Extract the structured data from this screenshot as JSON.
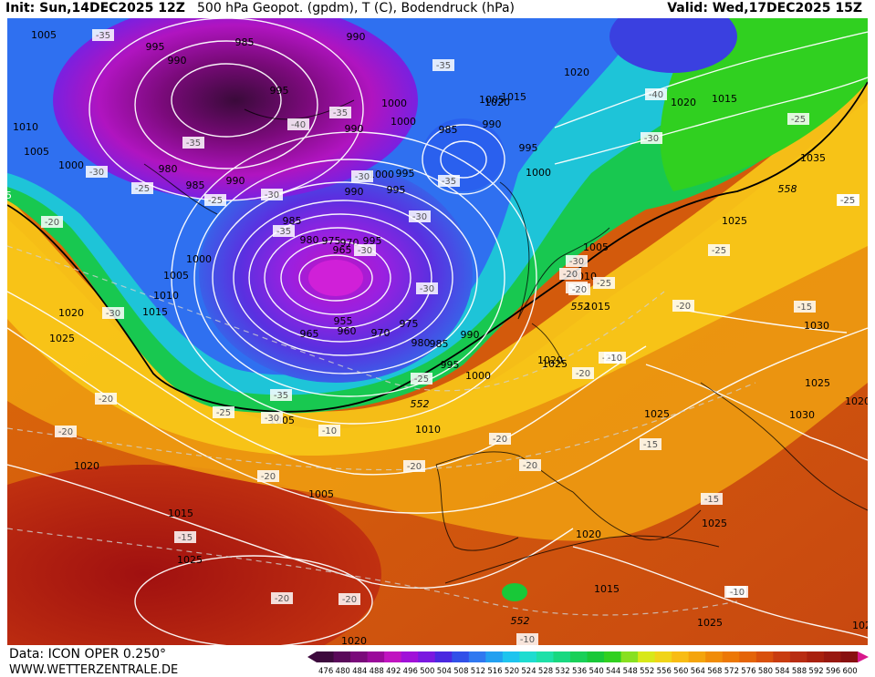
{
  "header": {
    "init": "Init: Sun,14DEC2025 12Z",
    "title": "500 hPa Geopot. (gpdm), T (C), Bodendruck (hPa)",
    "valid": "Valid: Wed,17DEC2025 15Z"
  },
  "footer": {
    "data_source": "Data: ICON OPER 0.250°",
    "url": "WWW.WETTERZENTRALE.DE"
  },
  "legend": {
    "values": [
      "476",
      "480",
      "484",
      "488",
      "492",
      "496",
      "500",
      "504",
      "508",
      "512",
      "516",
      "520",
      "524",
      "528",
      "532",
      "536",
      "540",
      "544",
      "548",
      "552",
      "556",
      "560",
      "564",
      "568",
      "572",
      "576",
      "580",
      "584",
      "588",
      "592",
      "596",
      "600"
    ],
    "colors": [
      "#3d0a3d",
      "#5a0a5a",
      "#7a0a7a",
      "#9a0a9a",
      "#c014c0",
      "#a010d8",
      "#7a18e0",
      "#4a28e0",
      "#3050e8",
      "#2f78f0",
      "#22a0f0",
      "#1ec4ee",
      "#1edcd0",
      "#1ee0a8",
      "#18d880",
      "#18d058",
      "#18c838",
      "#30d020",
      "#88e020",
      "#d8e818",
      "#f0d418",
      "#f8bc14",
      "#f4a40c",
      "#f08c08",
      "#ec7806",
      "#e46408",
      "#d8500c",
      "#c83c10",
      "#b82c12",
      "#a8200e",
      "#981810",
      "#881010"
    ]
  },
  "map": {
    "pressure_labels": [
      "1005",
      "995",
      "985",
      "990",
      "990",
      "995",
      "1000",
      "990",
      "1010",
      "1005",
      "1000",
      "980",
      "985",
      "990",
      "990",
      "995",
      "1000",
      "995",
      "1000",
      "985",
      "995",
      "1000",
      "990",
      "1005",
      "1015",
      "1020",
      "1020",
      "1015",
      "1035",
      "1025",
      "985",
      "980",
      "975",
      "970",
      "965",
      "995",
      "1000",
      "1005",
      "1010",
      "1015",
      "1020",
      "1025",
      "955",
      "960",
      "965",
      "970",
      "975",
      "980",
      "985",
      "990",
      "995",
      "1000",
      "1005",
      "1005",
      "1010",
      "1015",
      "1020",
      "1025",
      "1030",
      "1025",
      "1020",
      "1030",
      "1025",
      "1010",
      "1005",
      "1015",
      "1020",
      "1025",
      "1020",
      "1025",
      "1020",
      "1015",
      "1020",
      "1025",
      "1020"
    ],
    "temp_labels": [
      "-35",
      "-35",
      "-35",
      "-40",
      "-35",
      "-35",
      "-40",
      "-30",
      "-25",
      "-25",
      "-30",
      "-30",
      "-30",
      "-30",
      "-30",
      "-35",
      "-30",
      "-30",
      "-25",
      "-30",
      "-25",
      "-25",
      "-25",
      "-20",
      "-25",
      "-30",
      "-35",
      "-25",
      "-30",
      "-20",
      "-20",
      "-20",
      "-25",
      "-20",
      "-20",
      "-20",
      "-20",
      "-20",
      "-20",
      "-20",
      "-15",
      "-15",
      "-15",
      "-15",
      "-20",
      "-20",
      "-20",
      "-10",
      "-10",
      "-10",
      "-10",
      "-25"
    ],
    "height_labels": [
      "558",
      "552",
      "552",
      "552"
    ],
    "edge_label": "5"
  }
}
